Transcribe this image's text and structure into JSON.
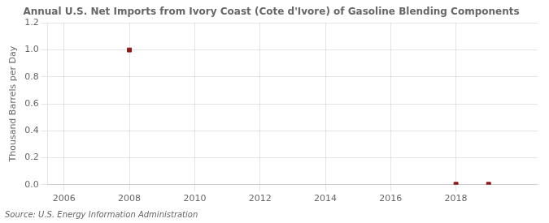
{
  "chart_data": {
    "type": "scatter",
    "title": "Annual U.S. Net Imports from Ivory Coast (Cote d'Ivore) of Gasoline Blending Components",
    "ylabel": "Thousand Barrels per Day",
    "annotation": "Source: U.S. Energy Information Administration",
    "x": [
      2008,
      2018,
      2019
    ],
    "values": [
      1.0,
      0.003,
      0.003
    ],
    "color": "#8b1a1a",
    "marker": "square",
    "xlim": [
      2005.5,
      2020.5
    ],
    "ylim": [
      0.0,
      1.2
    ],
    "xticks": [
      2006,
      2008,
      2010,
      2012,
      2014,
      2016,
      2018
    ],
    "yticks": [
      {
        "value": 0.0,
        "label": "0.0"
      },
      0.2,
      0.4,
      0.6,
      0.8,
      {
        "value": 1.0,
        "label": "1.0"
      },
      1.2
    ],
    "grid": true
  }
}
